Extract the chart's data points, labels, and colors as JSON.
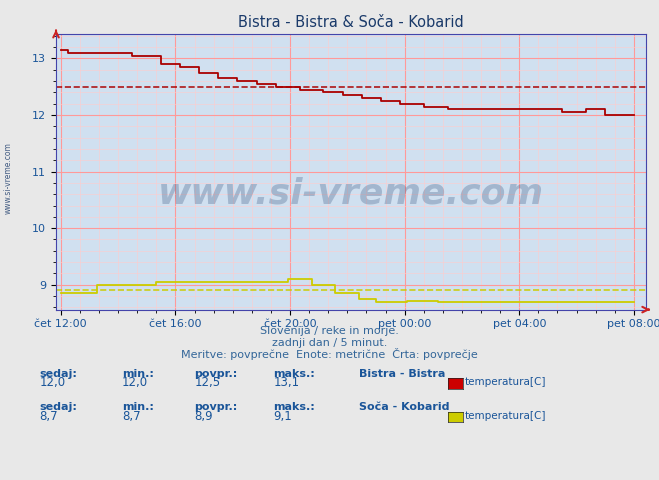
{
  "title": "Bistra - Bistra & Soča - Kobarid",
  "bg_color": "#e8e8e8",
  "plot_bg_color": "#d0e0f0",
  "grid_color_major": "#ff9999",
  "grid_color_minor": "#ffcccc",
  "x_tick_labels": [
    "čet 12:00",
    "čet 16:00",
    "čet 20:00",
    "pet 00:00",
    "pet 04:00",
    "pet 08:00"
  ],
  "x_tick_positions": [
    0,
    48,
    96,
    144,
    192,
    240
  ],
  "ylim_min": 8.56,
  "ylim_max": 13.44,
  "yticks": [
    9,
    10,
    11,
    12,
    13
  ],
  "xlim_min": -2,
  "xlim_max": 245,
  "line1_color": "#aa0000",
  "line2_color": "#cccc00",
  "avg1": 12.5,
  "avg2": 8.9,
  "subtitle1": "Slovenija / reke in morje.",
  "subtitle2": "zadnji dan / 5 minut.",
  "subtitle3": "Meritve: povprečne  Enote: metrične  Črta: povprečje",
  "legend1_station": "Bistra - Bistra",
  "legend1_label": "temperatura[C]",
  "legend1_color": "#cc0000",
  "legend2_station": "Soča - Kobarid",
  "legend2_label": "temperatura[C]",
  "legend2_color": "#cccc00",
  "stat1_sedaj": "12,0",
  "stat1_min": "12,0",
  "stat1_povpr": "12,5",
  "stat1_maks": "13,1",
  "stat2_sedaj": "8,7",
  "stat2_min": "8,7",
  "stat2_povpr": "8,9",
  "stat2_maks": "9,1",
  "watermark": "www.si-vreme.com",
  "watermark_color": "#1a3a6a",
  "watermark_alpha": 0.25,
  "text_color": "#336699",
  "label_color": "#1a5599"
}
